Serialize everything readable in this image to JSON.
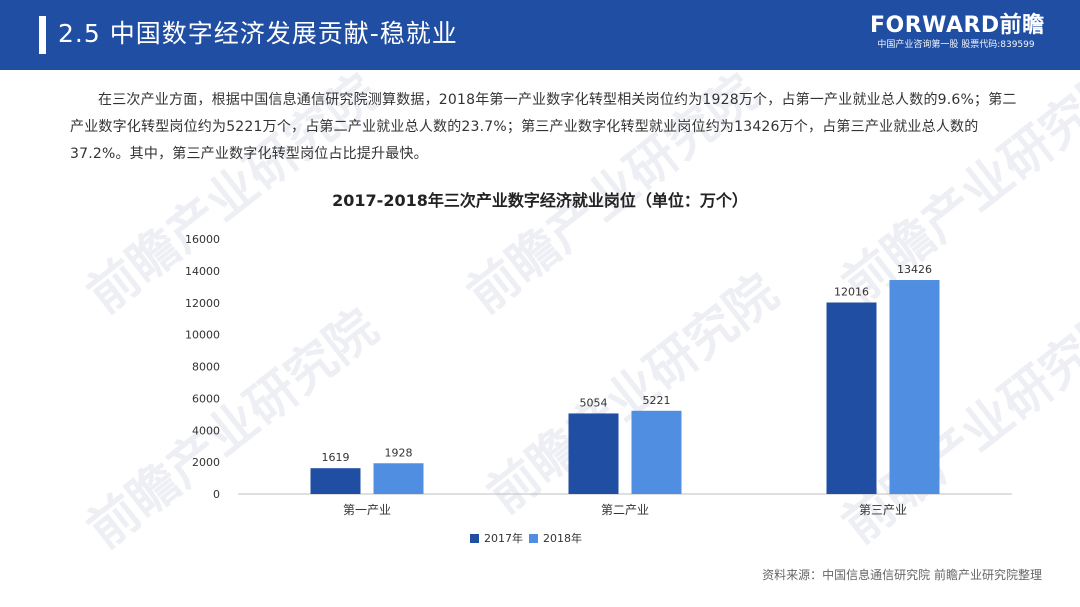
{
  "header": {
    "title": "2.5 中国数字经济发展贡献-稳就业",
    "brand_name": "FORWARD前瞻",
    "brand_subtitle": "中国产业咨询第一股 股票代码:839599"
  },
  "watermark": {
    "text": "前瞻产业研究院"
  },
  "body": {
    "paragraph": "在三次产业方面，根据中国信息通信研究院测算数据，2018年第一产业数字化转型相关岗位约为1928万个，占第一产业就业总人数的9.6%；第二产业数字化转型岗位约为5221万个，占第二产业就业总人数的23.7%；第三产业数字化转型就业岗位约为13426万个，占第三产业就业总人数的37.2%。其中，第三产业数字化转型岗位占比提升最快。"
  },
  "chart_data": {
    "type": "bar",
    "title": "2017-2018年三次产业数字经济就业岗位（单位：万个）",
    "categories": [
      "第一产业",
      "第二产业",
      "第三产业"
    ],
    "series": [
      {
        "name": "2017年",
        "values": [
          1619,
          5054,
          12016
        ],
        "value_labels": [
          "1619",
          "5054",
          "12016"
        ],
        "color": "#1f4ea3"
      },
      {
        "name": "2018年",
        "values": [
          1928,
          5221,
          13426
        ],
        "value_labels": [
          "1928",
          "5221",
          "13426"
        ],
        "color": "#4f8ee0"
      }
    ],
    "y_ticks": [
      0,
      2000,
      4000,
      6000,
      8000,
      10000,
      12000,
      14000,
      16000
    ],
    "y_tick_labels": [
      "0",
      "2000",
      "4000",
      "6000",
      "8000",
      "10000",
      "12000",
      "14000",
      "16000"
    ],
    "ylim": [
      0,
      16000
    ],
    "xlabel": "",
    "ylabel": "",
    "legend_position": "bottom"
  },
  "source": {
    "text": "资料来源：中国信息通信研究院 前瞻产业研究院整理"
  },
  "colors": {
    "header_background": "#1f4ea3",
    "series_2017": "#1f4ea3",
    "series_2018": "#4f8ee0"
  }
}
